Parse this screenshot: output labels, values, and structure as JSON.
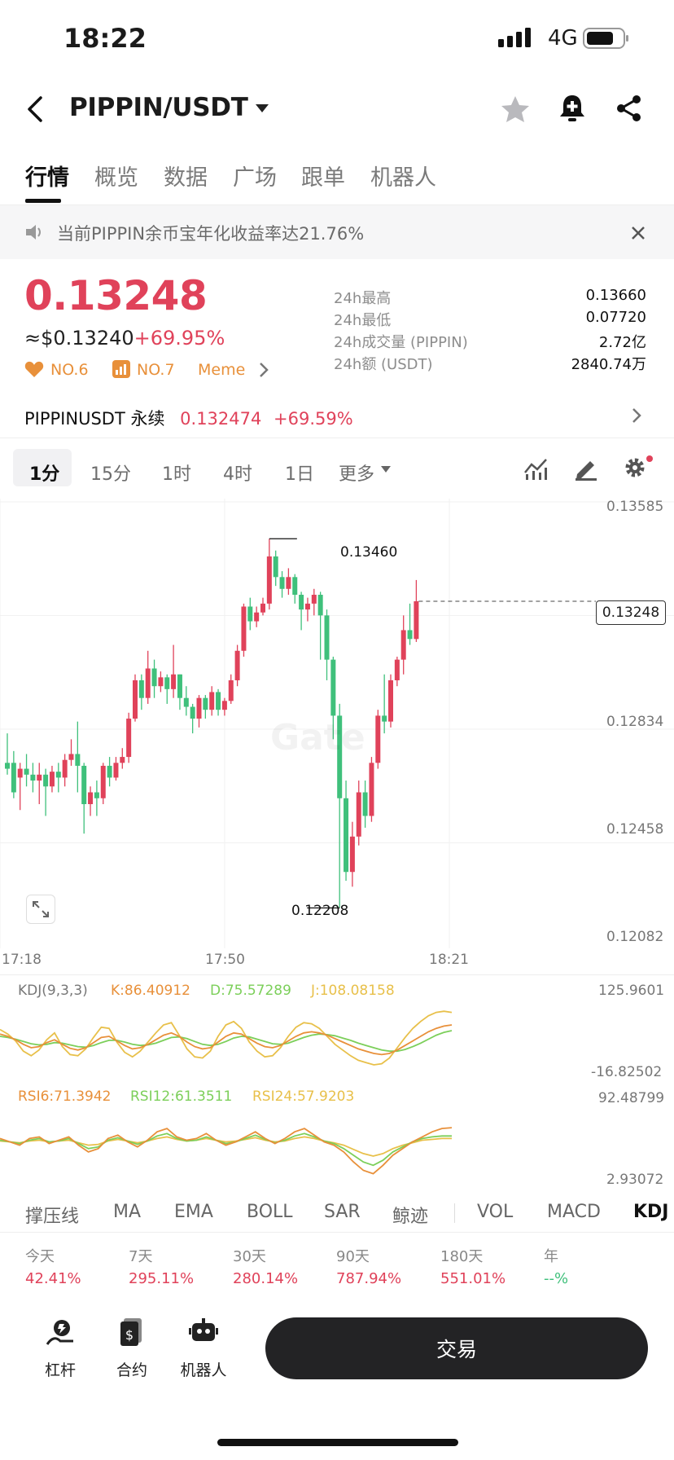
{
  "status_bar": {
    "time": "18:22",
    "network": "4G"
  },
  "header": {
    "title": "PIPPIN/USDT"
  },
  "tabs": [
    "行情",
    "概览",
    "数据",
    "广场",
    "跟单",
    "机器人"
  ],
  "banner": {
    "text": "当前PIPPIN余币宝年化收益率达21.76%"
  },
  "price": {
    "last": "0.13248",
    "usd": "≈$0.13240",
    "change": "+69.95%",
    "rank1": "NO.6",
    "rank2": "NO.7",
    "tag": "Meme"
  },
  "stats": [
    {
      "label": "24h最高",
      "value": "0.13660"
    },
    {
      "label": "24h最低",
      "value": "0.07720"
    },
    {
      "label": "24h成交量 (PIPPIN)",
      "value": "2.72亿"
    },
    {
      "label": "24h额 (USDT)",
      "value": "2840.74万"
    }
  ],
  "perp": {
    "name": "PIPPINUSDT 永续",
    "price": "0.132474",
    "change": "+69.59%"
  },
  "timeframes": [
    "1分",
    "15分",
    "1时",
    "4时",
    "1日",
    "更多"
  ],
  "chart_data": {
    "type": "candlestick",
    "y_ticks": [
      "0.13585",
      "0.12834",
      "0.12458",
      "0.12082"
    ],
    "x_ticks": [
      "17:18",
      "17:50",
      "18:21"
    ],
    "last_price_label": "0.13248",
    "high_marker": "0.13460",
    "low_marker": "0.12208",
    "ylim": [
      0.12082,
      0.13585
    ],
    "candles": [
      [
        0.127,
        0.128,
        0.1268,
        0.1266
      ],
      [
        0.127,
        0.1274,
        0.126,
        0.1258
      ],
      [
        0.1265,
        0.127,
        0.1268,
        0.1254
      ],
      [
        0.1268,
        0.1273,
        0.1266,
        0.1262
      ],
      [
        0.1266,
        0.127,
        0.1264,
        0.126
      ],
      [
        0.1264,
        0.127,
        0.1266,
        0.1256
      ],
      [
        0.1266,
        0.1268,
        0.1262,
        0.1252
      ],
      [
        0.1262,
        0.1269,
        0.1267,
        0.126
      ],
      [
        0.1267,
        0.127,
        0.1265,
        0.126
      ],
      [
        0.1265,
        0.1273,
        0.1271,
        0.1262
      ],
      [
        0.1271,
        0.1278,
        0.1273,
        0.1269
      ],
      [
        0.1273,
        0.1284,
        0.1269,
        0.126
      ],
      [
        0.1269,
        0.127,
        0.1256,
        0.1246
      ],
      [
        0.1256,
        0.1262,
        0.126,
        0.1252
      ],
      [
        0.126,
        0.1264,
        0.1258,
        0.1252
      ],
      [
        0.1258,
        0.127,
        0.1269,
        0.1256
      ],
      [
        0.1269,
        0.1272,
        0.1265,
        0.1262
      ],
      [
        0.1265,
        0.1272,
        0.127,
        0.1264
      ],
      [
        0.127,
        0.1275,
        0.1272,
        0.1268
      ],
      [
        0.1272,
        0.1287,
        0.1285,
        0.127
      ],
      [
        0.1285,
        0.13,
        0.1298,
        0.1284
      ],
      [
        0.1298,
        0.13,
        0.1292,
        0.1288
      ],
      [
        0.1292,
        0.1308,
        0.1302,
        0.129
      ],
      [
        0.1302,
        0.1305,
        0.1296,
        0.1292
      ],
      [
        0.1296,
        0.1301,
        0.1299,
        0.1294
      ],
      [
        0.1299,
        0.13,
        0.1295,
        0.129
      ],
      [
        0.1295,
        0.131,
        0.13,
        0.1292
      ],
      [
        0.13,
        0.13,
        0.1292,
        0.1288
      ],
      [
        0.1292,
        0.1296,
        0.1289,
        0.1286
      ],
      [
        0.1289,
        0.129,
        0.1285,
        0.128
      ],
      [
        0.1285,
        0.1293,
        0.1292,
        0.1282
      ],
      [
        0.1292,
        0.1293,
        0.1288,
        0.1285
      ],
      [
        0.1288,
        0.1296,
        0.1294,
        0.1286
      ],
      [
        0.1294,
        0.1295,
        0.1288,
        0.1286
      ],
      [
        0.1288,
        0.1292,
        0.1291,
        0.1286
      ],
      [
        0.1291,
        0.13,
        0.1298,
        0.129
      ],
      [
        0.1298,
        0.131,
        0.1308,
        0.1296
      ],
      [
        0.1308,
        0.1324,
        0.1323,
        0.1306
      ],
      [
        0.1323,
        0.1326,
        0.1318,
        0.1315
      ],
      [
        0.1318,
        0.1323,
        0.1321,
        0.1316
      ],
      [
        0.1321,
        0.1326,
        0.1324,
        0.132
      ],
      [
        0.1324,
        0.1346,
        0.134,
        0.1322
      ],
      [
        0.134,
        0.1342,
        0.1333,
        0.133
      ],
      [
        0.1333,
        0.1335,
        0.1329,
        0.1326
      ],
      [
        0.1329,
        0.1336,
        0.1333,
        0.1327
      ],
      [
        0.1333,
        0.1334,
        0.1327,
        0.1324
      ],
      [
        0.1327,
        0.1328,
        0.1322,
        0.1315
      ],
      [
        0.1322,
        0.1326,
        0.1324,
        0.1318
      ],
      [
        0.1324,
        0.1329,
        0.1327,
        0.132
      ],
      [
        0.1327,
        0.1328,
        0.132,
        0.1305
      ],
      [
        0.132,
        0.1322,
        0.1305,
        0.1298
      ],
      [
        0.1305,
        0.1306,
        0.1286,
        0.1278
      ],
      [
        0.1286,
        0.129,
        0.1258,
        0.12208
      ],
      [
        0.1258,
        0.1264,
        0.1233,
        0.123
      ],
      [
        0.1233,
        0.125,
        0.1245,
        0.1228
      ],
      [
        0.1245,
        0.1264,
        0.126,
        0.1242
      ],
      [
        0.126,
        0.1264,
        0.1252,
        0.1248
      ],
      [
        0.1252,
        0.1272,
        0.127,
        0.125
      ],
      [
        0.127,
        0.1288,
        0.1286,
        0.1268
      ],
      [
        0.1286,
        0.13,
        0.1284,
        0.128
      ],
      [
        0.1284,
        0.13,
        0.1298,
        0.1282
      ],
      [
        0.1298,
        0.1306,
        0.1305,
        0.1296
      ],
      [
        0.1305,
        0.132,
        0.1315,
        0.13
      ],
      [
        0.1315,
        0.1324,
        0.1312,
        0.131
      ],
      [
        0.1312,
        0.1332,
        0.13248,
        0.1311
      ]
    ]
  },
  "kdj": {
    "label": "KDJ(9,3,3)",
    "k": "K:86.40912",
    "d": "D:75.57289",
    "j": "J:108.08158",
    "max": "125.9601",
    "min": "-16.82502",
    "k_values": [
      70,
      66,
      60,
      52,
      46,
      48,
      55,
      60,
      52,
      45,
      42,
      46,
      55,
      64,
      66,
      58,
      50,
      44,
      46,
      52,
      60,
      68,
      72,
      66,
      56,
      48,
      44,
      46,
      56,
      66,
      72,
      70,
      62,
      54,
      48,
      46,
      50,
      58,
      66,
      72,
      74,
      72,
      68,
      62,
      56,
      50,
      44,
      40,
      36,
      34,
      36,
      42,
      50,
      58,
      66,
      74,
      80,
      84,
      86
    ],
    "d_values": [
      66,
      64,
      61,
      57,
      53,
      51,
      52,
      55,
      54,
      51,
      48,
      47,
      50,
      55,
      59,
      59,
      56,
      52,
      50,
      51,
      54,
      59,
      64,
      65,
      62,
      57,
      52,
      50,
      52,
      57,
      63,
      66,
      65,
      61,
      57,
      53,
      52,
      54,
      59,
      64,
      68,
      70,
      69,
      67,
      63,
      59,
      54,
      50,
      46,
      42,
      40,
      40,
      43,
      48,
      54,
      61,
      68,
      73,
      76
    ],
    "j_values": [
      78,
      70,
      58,
      40,
      32,
      42,
      60,
      72,
      48,
      34,
      32,
      44,
      64,
      82,
      80,
      56,
      38,
      30,
      40,
      56,
      72,
      86,
      90,
      68,
      44,
      30,
      28,
      40,
      66,
      86,
      92,
      80,
      56,
      40,
      30,
      32,
      46,
      66,
      82,
      90,
      88,
      80,
      66,
      52,
      42,
      32,
      24,
      20,
      16,
      18,
      28,
      46,
      64,
      80,
      92,
      102,
      108,
      110,
      108
    ]
  },
  "rsi": {
    "rsi6": "RSI6:71.3942",
    "rsi12": "RSI12:61.3511",
    "rsi24": "RSI24:57.9203",
    "max": "92.48799",
    "min": "2.93072",
    "rsi6_values": [
      58,
      54,
      50,
      58,
      60,
      52,
      56,
      60,
      50,
      42,
      46,
      58,
      62,
      54,
      48,
      56,
      66,
      70,
      60,
      56,
      58,
      64,
      56,
      50,
      54,
      60,
      66,
      58,
      52,
      58,
      66,
      70,
      62,
      54,
      50,
      42,
      30,
      20,
      16,
      26,
      38,
      46,
      54,
      60,
      66,
      70,
      71
    ],
    "rsi12_values": [
      56,
      54,
      52,
      56,
      58,
      54,
      55,
      58,
      52,
      46,
      48,
      56,
      59,
      55,
      51,
      55,
      61,
      64,
      58,
      55,
      56,
      60,
      56,
      52,
      54,
      58,
      62,
      57,
      53,
      56,
      61,
      64,
      60,
      55,
      52,
      46,
      38,
      30,
      26,
      32,
      42,
      48,
      54,
      58,
      60,
      61,
      61
    ],
    "rsi24_values": [
      55,
      54,
      53,
      55,
      56,
      54,
      55,
      56,
      53,
      50,
      51,
      55,
      57,
      55,
      53,
      55,
      58,
      60,
      57,
      55,
      56,
      58,
      56,
      54,
      55,
      57,
      59,
      56,
      54,
      55,
      58,
      60,
      58,
      55,
      53,
      50,
      45,
      40,
      37,
      40,
      46,
      50,
      53,
      56,
      57,
      58,
      58
    ]
  },
  "indicator_tabs": [
    "撑压线",
    "MA",
    "EMA",
    "BOLL",
    "SAR",
    "鲸迹",
    "VOL",
    "MACD",
    "KDJ"
  ],
  "returns": [
    {
      "label": "今天",
      "value": "42.41%"
    },
    {
      "label": "7天",
      "value": "295.11%"
    },
    {
      "label": "30天",
      "value": "280.14%"
    },
    {
      "label": "90天",
      "value": "787.94%"
    },
    {
      "label": "180天",
      "value": "551.01%"
    },
    {
      "label": "年",
      "value": "--%"
    }
  ],
  "bottom_nav": [
    "杠杆",
    "合约",
    "机器人"
  ],
  "trade_button": "交易",
  "colors": {
    "up": "#e0425a",
    "down": "#3fc07b",
    "k": "#e8903a",
    "d": "#7ccf5a",
    "j": "#e8c04a"
  }
}
